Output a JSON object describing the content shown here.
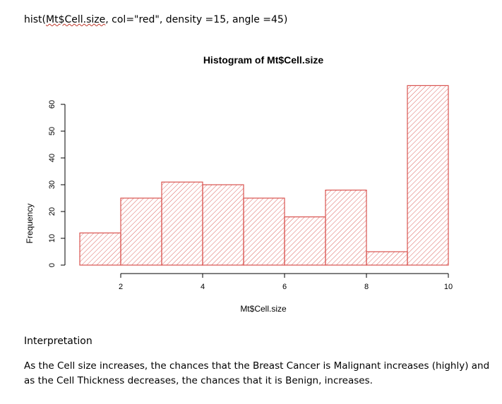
{
  "document": {
    "code_prefix": "hist(",
    "code_squiggle": "Mt$Cell.size",
    "code_suffix": ", col=\"red\", density =15, angle =45)",
    "interpretation_heading": "Interpretation",
    "interpretation_text": "As the Cell size increases, the chances that the Breast Cancer is Malignant increases (highly) and as the Cell Thickness decreases, the chances that it is Benign, increases."
  },
  "chart_data": {
    "type": "bar",
    "title": "Histogram of Mt$Cell.size",
    "xlabel": "Mt$Cell.size",
    "ylabel": "Frequency",
    "bins": [
      [
        1,
        2
      ],
      [
        2,
        3
      ],
      [
        3,
        4
      ],
      [
        4,
        5
      ],
      [
        5,
        6
      ],
      [
        6,
        7
      ],
      [
        7,
        8
      ],
      [
        8,
        9
      ],
      [
        9,
        10
      ]
    ],
    "values": [
      12,
      25,
      31,
      30,
      25,
      18,
      28,
      5,
      67
    ],
    "xlim": [
      1,
      10
    ],
    "ylim": [
      0,
      67
    ],
    "xticks": [
      2,
      4,
      6,
      8,
      10
    ],
    "yticks": [
      0,
      10,
      20,
      30,
      40,
      50,
      60
    ],
    "bar_color": "#d9534f",
    "hatch_angle": 45,
    "density": 15,
    "grid": false,
    "legend": "none"
  }
}
